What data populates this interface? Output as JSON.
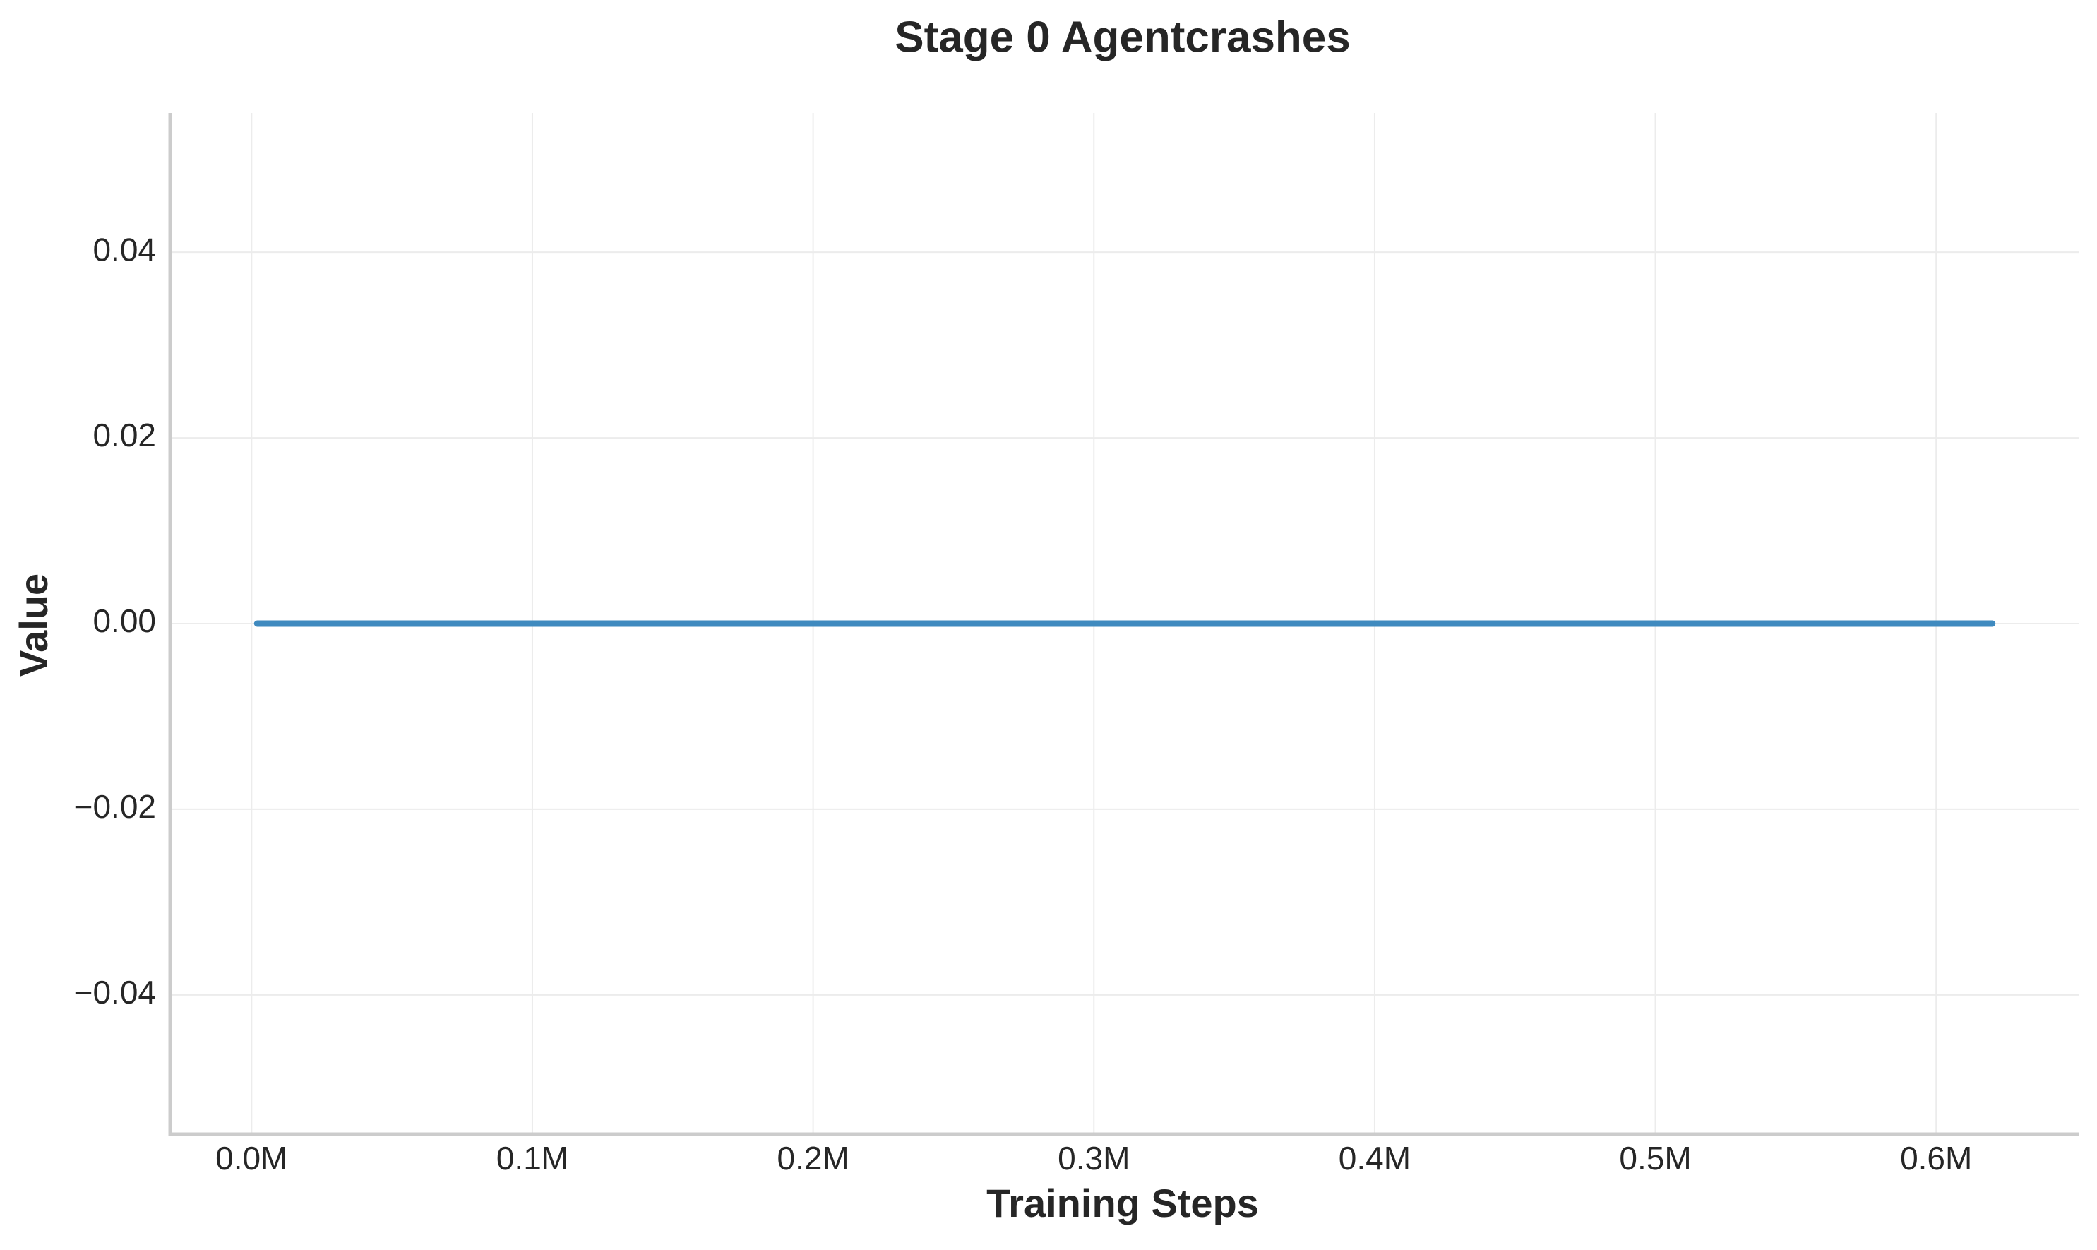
{
  "chart_data": {
    "type": "line",
    "title": "Stage 0 Agentcrashes",
    "xlabel": "Training Steps",
    "ylabel": "Value",
    "xlim": [
      -0.029,
      0.651
    ],
    "ylim": [
      -0.055,
      0.055
    ],
    "x_ticks": [
      {
        "value": 0.0,
        "label": "0.0M"
      },
      {
        "value": 0.1,
        "label": "0.1M"
      },
      {
        "value": 0.2,
        "label": "0.2M"
      },
      {
        "value": 0.3,
        "label": "0.3M"
      },
      {
        "value": 0.4,
        "label": "0.4M"
      },
      {
        "value": 0.5,
        "label": "0.5M"
      },
      {
        "value": 0.6,
        "label": "0.6M"
      }
    ],
    "y_ticks": [
      {
        "value": 0.04,
        "label": "0.04"
      },
      {
        "value": 0.02,
        "label": "0.02"
      },
      {
        "value": 0.0,
        "label": "0.00"
      },
      {
        "value": -0.02,
        "label": "−0.02"
      },
      {
        "value": -0.04,
        "label": "−0.04"
      }
    ],
    "grid": true,
    "legend": "none",
    "series": [
      {
        "color": "#3f8abf",
        "x": [
          0.002,
          0.1,
          0.2,
          0.3,
          0.4,
          0.5,
          0.62
        ],
        "y": [
          0,
          0,
          0,
          0,
          0,
          0,
          0
        ]
      }
    ]
  }
}
